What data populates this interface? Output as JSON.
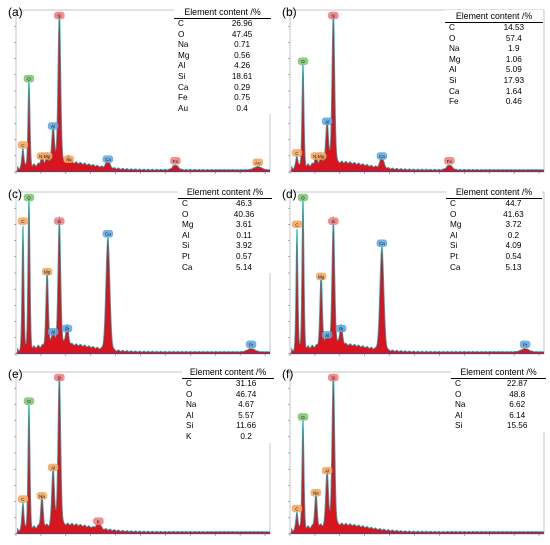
{
  "chart_data": [
    {
      "type": "table",
      "panel_label": "(a)",
      "table_header": "Element content /%",
      "rows": [
        {
          "element": "C",
          "value": "26.96"
        },
        {
          "element": "O",
          "value": "47.45"
        },
        {
          "element": "Na",
          "value": "0.71"
        },
        {
          "element": "Mg",
          "value": "0.56"
        },
        {
          "element": "Al",
          "value": "4.26"
        },
        {
          "element": "Si",
          "value": "18.61"
        },
        {
          "element": "Ca",
          "value": "0.29"
        },
        {
          "element": "Fe",
          "value": "0.75"
        },
        {
          "element": "Au",
          "value": "0.4"
        }
      ],
      "spectrum_peaks": [
        {
          "label": "C",
          "energy": 0.28,
          "height": 0.13,
          "color": "#f3a55d"
        },
        {
          "label": "O",
          "energy": 0.52,
          "height": 0.55,
          "color": "#7ec46a"
        },
        {
          "label": "Na",
          "energy": 1.04,
          "height": 0.06,
          "color": "#f3a55d"
        },
        {
          "label": "Mg",
          "energy": 1.25,
          "height": 0.06,
          "color": "#f3a55d"
        },
        {
          "label": "Al",
          "energy": 1.49,
          "height": 0.25,
          "color": "#5aa6e0"
        },
        {
          "label": "Si",
          "energy": 1.74,
          "height": 0.97,
          "color": "#f07a7a"
        },
        {
          "label": "Au",
          "energy": 2.12,
          "height": 0.04,
          "color": "#f3a55d"
        },
        {
          "label": "Ca",
          "energy": 3.69,
          "height": 0.04,
          "color": "#5aa6e0"
        },
        {
          "label": "Fe",
          "energy": 6.4,
          "height": 0.03,
          "color": "#f07a7a"
        },
        {
          "label": "Au",
          "energy": 9.71,
          "height": 0.02,
          "color": "#f3a55d"
        }
      ]
    },
    {
      "type": "table",
      "panel_label": "(b)",
      "table_header": "Element content /%",
      "rows": [
        {
          "element": "C",
          "value": "14.53"
        },
        {
          "element": "O",
          "value": "57.4"
        },
        {
          "element": "Na",
          "value": "1.9"
        },
        {
          "element": "Mg",
          "value": "1.06"
        },
        {
          "element": "Al",
          "value": "5.09"
        },
        {
          "element": "Si",
          "value": "17.93"
        },
        {
          "element": "Ca",
          "value": "1.64"
        },
        {
          "element": "Fe",
          "value": "0.46"
        }
      ],
      "spectrum_peaks": [
        {
          "label": "C",
          "energy": 0.28,
          "height": 0.08,
          "color": "#f3a55d"
        },
        {
          "label": "O",
          "energy": 0.52,
          "height": 0.66,
          "color": "#7ec46a"
        },
        {
          "label": "Na",
          "energy": 1.04,
          "height": 0.06,
          "color": "#f3a55d"
        },
        {
          "label": "Mg",
          "energy": 1.25,
          "height": 0.06,
          "color": "#f3a55d"
        },
        {
          "label": "Al",
          "energy": 1.49,
          "height": 0.28,
          "color": "#5aa6e0"
        },
        {
          "label": "Si",
          "energy": 1.74,
          "height": 0.97,
          "color": "#f07a7a"
        },
        {
          "label": "Ca",
          "energy": 3.69,
          "height": 0.06,
          "color": "#5aa6e0"
        },
        {
          "label": "Fe",
          "energy": 6.4,
          "height": 0.03,
          "color": "#f07a7a"
        }
      ]
    },
    {
      "type": "table",
      "panel_label": "(c)",
      "table_header": "Element content /%",
      "rows": [
        {
          "element": "C",
          "value": "46.3"
        },
        {
          "element": "O",
          "value": "40.36"
        },
        {
          "element": "Mg",
          "value": "3.61"
        },
        {
          "element": "Al",
          "value": "0.11"
        },
        {
          "element": "Si",
          "value": "3.92"
        },
        {
          "element": "Pt",
          "value": "0.57"
        },
        {
          "element": "Ca",
          "value": "5.14"
        }
      ],
      "spectrum_peaks": [
        {
          "label": "C",
          "energy": 0.28,
          "height": 0.8,
          "color": "#f3a55d"
        },
        {
          "label": "O",
          "energy": 0.52,
          "height": 0.97,
          "color": "#7ec46a"
        },
        {
          "label": "Mg",
          "energy": 1.25,
          "height": 0.48,
          "color": "#f3a55d"
        },
        {
          "label": "Al",
          "energy": 1.49,
          "height": 0.1,
          "color": "#5aa6e0"
        },
        {
          "label": "Si",
          "energy": 1.74,
          "height": 0.8,
          "color": "#f07a7a"
        },
        {
          "label": "Pt",
          "energy": 2.05,
          "height": 0.12,
          "color": "#5aa6e0"
        },
        {
          "label": "Ca",
          "energy": 3.69,
          "height": 0.72,
          "color": "#5aa6e0"
        },
        {
          "label": "Pt",
          "energy": 9.44,
          "height": 0.02,
          "color": "#5aa6e0"
        }
      ]
    },
    {
      "type": "table",
      "panel_label": "(d)",
      "table_header": "Element content /%",
      "rows": [
        {
          "element": "C",
          "value": "44.7"
        },
        {
          "element": "O",
          "value": "41.63"
        },
        {
          "element": "Mg",
          "value": "3.72"
        },
        {
          "element": "Al",
          "value": "0.2"
        },
        {
          "element": "Si",
          "value": "4.09"
        },
        {
          "element": "Pt",
          "value": "0.54"
        },
        {
          "element": "Ca",
          "value": "5.13"
        }
      ],
      "spectrum_peaks": [
        {
          "label": "C",
          "energy": 0.28,
          "height": 0.78,
          "color": "#f3a55d"
        },
        {
          "label": "O",
          "energy": 0.52,
          "height": 0.97,
          "color": "#7ec46a"
        },
        {
          "label": "Mg",
          "energy": 1.25,
          "height": 0.45,
          "color": "#f3a55d"
        },
        {
          "label": "Al",
          "energy": 1.49,
          "height": 0.08,
          "color": "#5aa6e0"
        },
        {
          "label": "Si",
          "energy": 1.74,
          "height": 0.8,
          "color": "#f07a7a"
        },
        {
          "label": "Pt",
          "energy": 2.05,
          "height": 0.12,
          "color": "#5aa6e0"
        },
        {
          "label": "Ca",
          "energy": 3.69,
          "height": 0.66,
          "color": "#5aa6e0"
        },
        {
          "label": "Pt",
          "energy": 9.44,
          "height": 0.02,
          "color": "#5aa6e0"
        }
      ]
    },
    {
      "type": "table",
      "panel_label": "(e)",
      "table_header": "Element content /%",
      "rows": [
        {
          "element": "C",
          "value": "31.16"
        },
        {
          "element": "O",
          "value": "46.74"
        },
        {
          "element": "Na",
          "value": "4.67"
        },
        {
          "element": "Al",
          "value": "5.57"
        },
        {
          "element": "Si",
          "value": "11.66"
        },
        {
          "element": "K",
          "value": "0.2"
        }
      ],
      "spectrum_peaks": [
        {
          "label": "C",
          "energy": 0.28,
          "height": 0.18,
          "color": "#f3a55d"
        },
        {
          "label": "O",
          "energy": 0.52,
          "height": 0.8,
          "color": "#7ec46a"
        },
        {
          "label": "Na",
          "energy": 1.04,
          "height": 0.2,
          "color": "#f3a55d"
        },
        {
          "label": "Al",
          "energy": 1.49,
          "height": 0.38,
          "color": "#f3a55d"
        },
        {
          "label": "Si",
          "energy": 1.74,
          "height": 0.97,
          "color": "#f07a7a"
        },
        {
          "label": "K",
          "energy": 3.31,
          "height": 0.04,
          "color": "#f07a7a"
        }
      ]
    },
    {
      "type": "table",
      "panel_label": "(f)",
      "table_header": "Element content /%",
      "rows": [
        {
          "element": "C",
          "value": "22.87"
        },
        {
          "element": "O",
          "value": "48.8"
        },
        {
          "element": "Na",
          "value": "6.62"
        },
        {
          "element": "Al",
          "value": "6.14"
        },
        {
          "element": "Si",
          "value": "15.56"
        }
      ],
      "spectrum_peaks": [
        {
          "label": "C",
          "energy": 0.28,
          "height": 0.12,
          "color": "#f3a55d"
        },
        {
          "label": "O",
          "energy": 0.52,
          "height": 0.7,
          "color": "#7ec46a"
        },
        {
          "label": "Na",
          "energy": 1.04,
          "height": 0.22,
          "color": "#f3a55d"
        },
        {
          "label": "Al",
          "energy": 1.49,
          "height": 0.36,
          "color": "#f3a55d"
        },
        {
          "label": "Si",
          "energy": 1.74,
          "height": 0.97,
          "color": "#f07a7a"
        }
      ]
    }
  ],
  "colors": {
    "spectrum_fill": "#d8141e",
    "envelope_line": "#21b3b8",
    "baseline": "#3a4a9a"
  }
}
